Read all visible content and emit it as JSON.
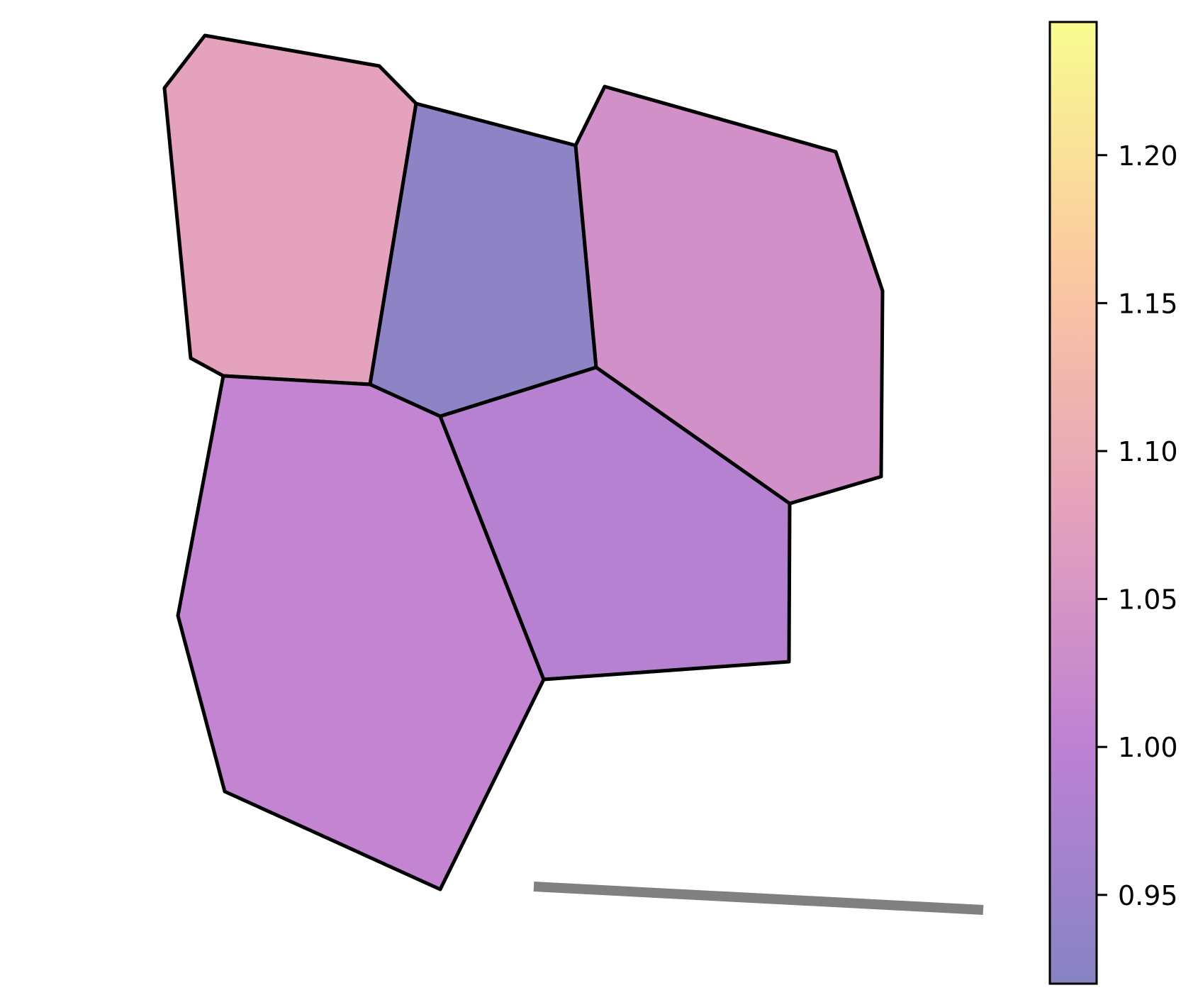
{
  "chart_data": {
    "type": "heatmap",
    "title": "",
    "xlabel": "",
    "ylabel": "",
    "colormap": "plasma",
    "colormap_alpha": 0.5,
    "edge_color": "#000000",
    "grid": false,
    "legend": "colorbar-right",
    "cells": [
      {
        "id": "cell-top-left",
        "value": 1.08,
        "vertices": [
          [
            232,
            124
          ],
          [
            289,
            50
          ],
          [
            535,
            93
          ],
          [
            587,
            146
          ],
          [
            522,
            542
          ],
          [
            315,
            530
          ],
          [
            269,
            505
          ]
        ]
      },
      {
        "id": "cell-top-middle",
        "value": 0.93,
        "vertices": [
          [
            587,
            146
          ],
          [
            812,
            205
          ],
          [
            841,
            518
          ],
          [
            621,
            587
          ],
          [
            522,
            542
          ]
        ]
      },
      {
        "id": "cell-top-right",
        "value": 1.04,
        "vertices": [
          [
            812,
            205
          ],
          [
            853,
            122
          ],
          [
            1179,
            214
          ],
          [
            1245,
            410
          ],
          [
            1243,
            672
          ],
          [
            1114,
            710
          ],
          [
            841,
            518
          ]
        ]
      },
      {
        "id": "cell-bottom-left",
        "value": 1.01,
        "vertices": [
          [
            315,
            530
          ],
          [
            522,
            542
          ],
          [
            621,
            587
          ],
          [
            767,
            958
          ],
          [
            621,
            1254
          ],
          [
            317,
            1116
          ],
          [
            251,
            868
          ]
        ]
      },
      {
        "id": "cell-bottom-middle",
        "value": 0.99,
        "vertices": [
          [
            621,
            587
          ],
          [
            841,
            518
          ],
          [
            1114,
            710
          ],
          [
            1113,
            933
          ],
          [
            767,
            958
          ]
        ]
      }
    ],
    "line_segment": {
      "x": [
        753,
        1387
      ],
      "y": [
        1250,
        1283
      ],
      "color": "#808080"
    },
    "colorbar": {
      "min": 0.92,
      "max": 1.245,
      "ticks": [
        0.95,
        1.0,
        1.05,
        1.1,
        1.15,
        1.2
      ],
      "tick_labels": [
        "0.95",
        "1.00",
        "1.05",
        "1.10",
        "1.15",
        "1.20"
      ]
    }
  }
}
